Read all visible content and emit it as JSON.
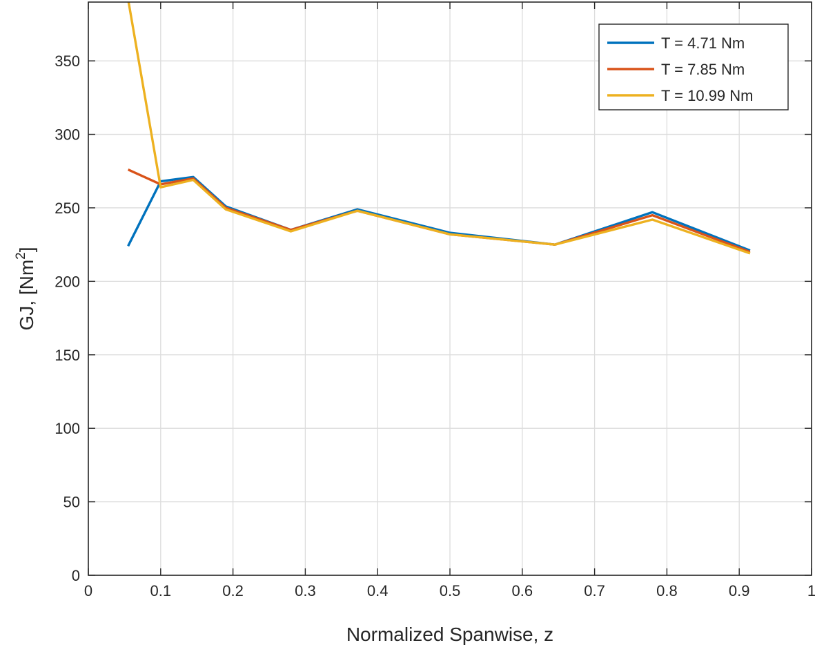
{
  "chart_data": {
    "type": "line",
    "xlabel": "Normalized Spanwise, z",
    "ylabel_main": "GJ, [Nm",
    "ylabel_sup": "2",
    "ylabel_close": "]",
    "xlim": [
      0,
      1
    ],
    "ylim": [
      0,
      390
    ],
    "xticks": [
      0,
      0.1,
      0.2,
      0.3,
      0.4,
      0.5,
      0.6,
      0.7,
      0.8,
      0.9,
      1
    ],
    "xtick_labels": [
      "0",
      "0.1",
      "0.2",
      "0.3",
      "0.4",
      "0.5",
      "0.6",
      "0.7",
      "0.8",
      "0.9",
      "1"
    ],
    "yticks": [
      0,
      50,
      100,
      150,
      200,
      250,
      300,
      350
    ],
    "ytick_labels": [
      "0",
      "50",
      "100",
      "150",
      "200",
      "250",
      "300",
      "350"
    ],
    "grid": true,
    "legend_position": "top-right",
    "series": [
      {
        "name": "T = 4.71 Nm",
        "color": "#0072BD",
        "x": [
          0.055,
          0.1,
          0.145,
          0.19,
          0.28,
          0.372,
          0.5,
          0.645,
          0.78,
          0.915
        ],
        "y": [
          224,
          268,
          271,
          251,
          235,
          249,
          233,
          225,
          247,
          221
        ]
      },
      {
        "name": "T = 7.85 Nm",
        "color": "#D95319",
        "x": [
          0.055,
          0.1,
          0.145,
          0.19,
          0.28,
          0.372,
          0.5,
          0.645,
          0.78,
          0.915
        ],
        "y": [
          276,
          266,
          270,
          250,
          235,
          248,
          232,
          225,
          245,
          220
        ]
      },
      {
        "name": "T = 10.99 Nm",
        "color": "#EDB120",
        "x": [
          0.055,
          0.1,
          0.145,
          0.19,
          0.28,
          0.372,
          0.5,
          0.645,
          0.78,
          0.915
        ],
        "y": [
          392,
          264,
          269,
          249,
          234,
          248,
          232,
          225,
          242,
          219
        ]
      }
    ]
  }
}
